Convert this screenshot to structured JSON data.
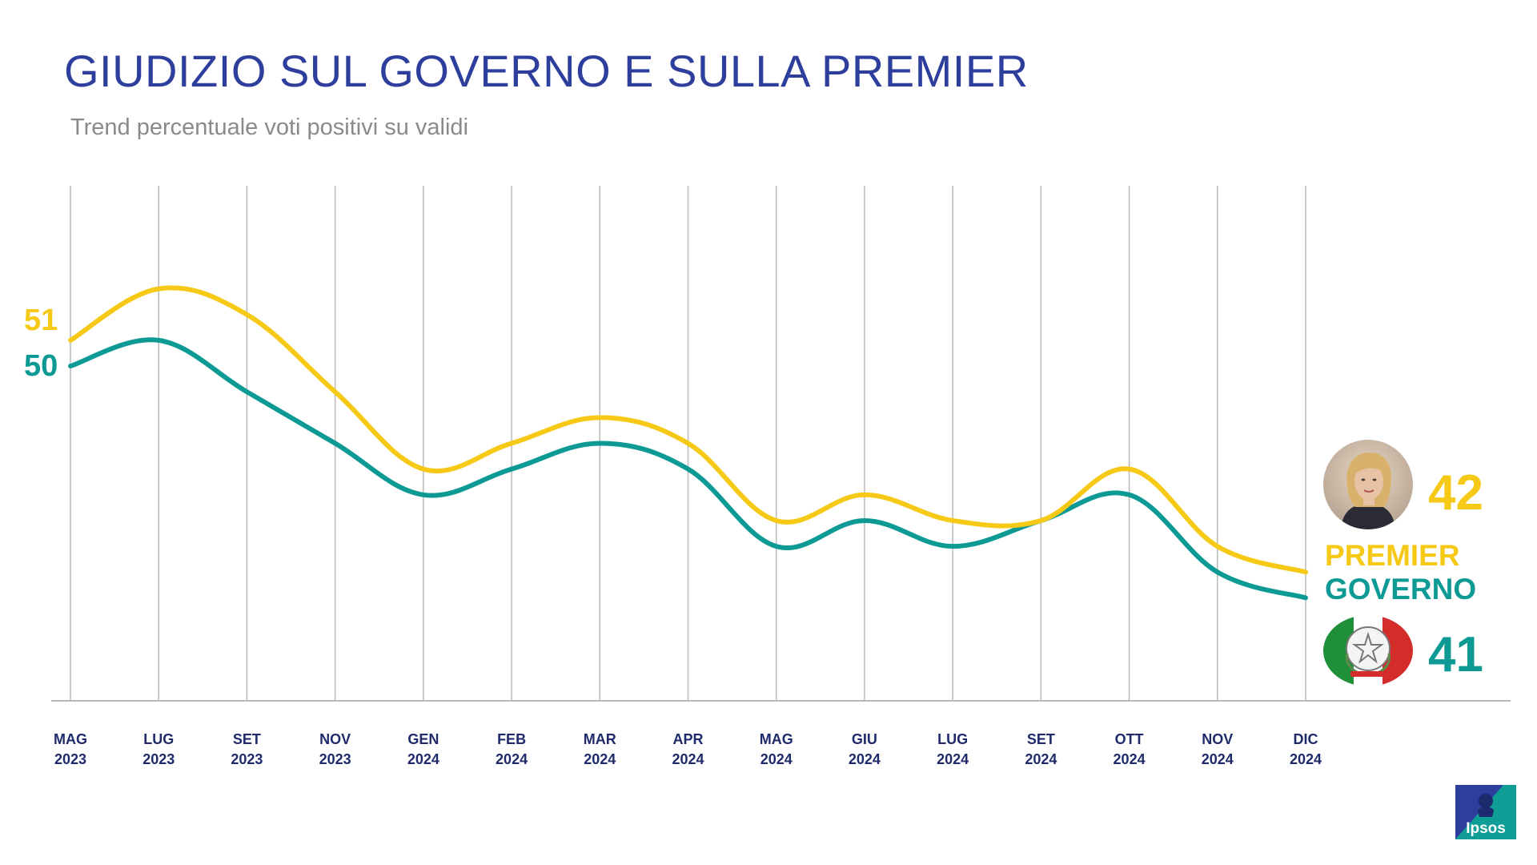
{
  "header": {
    "title": "GIUDIZIO SUL GOVERNO E SULLA PREMIER",
    "subtitle": "Trend percentuale voti positivi su validi"
  },
  "colors": {
    "premier": "#f7c917",
    "governo": "#0d9a94",
    "title": "#2e3e9c",
    "axis_labels": "#1f2a6b",
    "gridline": "#b9b9b9",
    "axis": "#b9b9b9"
  },
  "start_labels": {
    "premier": "51",
    "governo": "50"
  },
  "end_labels": {
    "premier_value": "42",
    "premier_label": "PREMIER",
    "governo_label": "GOVERNO",
    "governo_value": "41"
  },
  "icons": {
    "premier": "premier-portrait",
    "governo": "italian-republic-emblem",
    "brand": "ipsos-logo"
  },
  "brand": {
    "name": "Ipsos"
  },
  "chart_data": {
    "type": "line",
    "title": "GIUDIZIO SUL GOVERNO E SULLA PREMIER",
    "subtitle": "Trend percentuale voti positivi su validi",
    "categories": [
      [
        "MAG",
        "2023"
      ],
      [
        "LUG",
        "2023"
      ],
      [
        "SET",
        "2023"
      ],
      [
        "NOV",
        "2023"
      ],
      [
        "GEN",
        "2024"
      ],
      [
        "FEB",
        "2024"
      ],
      [
        "MAR",
        "2024"
      ],
      [
        "APR",
        "2024"
      ],
      [
        "MAG",
        "2024"
      ],
      [
        "GIU",
        "2024"
      ],
      [
        "LUG",
        "2024"
      ],
      [
        "SET",
        "2024"
      ],
      [
        "OTT",
        "2024"
      ],
      [
        "NOV",
        "2024"
      ],
      [
        "DIC",
        "2024"
      ]
    ],
    "series": [
      {
        "name": "PREMIER",
        "values": [
          51,
          53,
          52,
          49,
          46,
          47,
          48,
          47,
          44,
          45,
          44,
          44,
          46,
          43,
          42
        ]
      },
      {
        "name": "GOVERNO",
        "values": [
          50,
          51,
          49,
          47,
          45,
          46,
          47,
          46,
          43,
          44,
          43,
          44,
          45,
          42,
          41
        ]
      }
    ],
    "ylim": [
      37,
      57
    ],
    "grid": "vertical",
    "legend": "right"
  }
}
